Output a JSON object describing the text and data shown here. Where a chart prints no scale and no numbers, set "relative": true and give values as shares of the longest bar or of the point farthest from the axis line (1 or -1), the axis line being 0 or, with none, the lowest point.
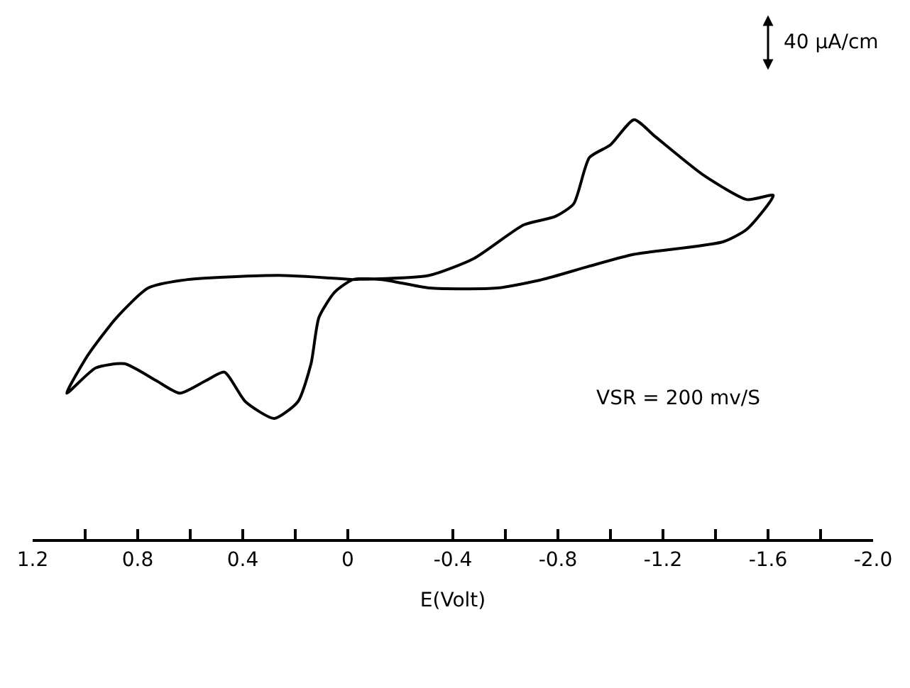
{
  "chart_data": {
    "type": "line",
    "relative": true,
    "xlabel": "E(Volt)",
    "xlim": [
      1.2,
      -2.0
    ],
    "xticks": [
      1.2,
      {
        "value": 1.0,
        "label": null
      },
      0.8,
      {
        "value": 0.6,
        "label": null
      },
      0.4,
      {
        "value": 0.2,
        "label": null
      },
      0,
      -0.4,
      {
        "value": -0.6,
        "label": null
      },
      -0.8,
      {
        "value": -1.0,
        "label": null
      },
      -1.2,
      {
        "value": -1.4,
        "label": null
      },
      -1.6,
      {
        "value": -1.8,
        "label": null
      },
      {
        "value": -2.0,
        "label": "-2.0"
      }
    ],
    "annotations": [
      "40 μA/cm",
      "VSR = 200 mv/S"
    ],
    "marker": "none",
    "line_style": "solid",
    "series": [
      {
        "color": "#000000",
        "x": [
          -0.01,
          -0.31,
          -0.48,
          -0.67,
          -0.79,
          -0.86,
          -0.92,
          -1.0,
          -1.09,
          -1.17,
          -1.35,
          -1.52,
          -1.62,
          -1.52,
          -1.43,
          -1.09,
          -0.91,
          -0.74,
          -0.57,
          -0.31,
          -0.13,
          -0.02,
          0.05,
          0.11,
          0.14,
          0.19,
          0.28,
          0.39,
          0.47,
          0.54,
          0.64,
          0.73,
          0.85,
          0.96,
          1.07,
          0.99,
          0.88,
          0.76,
          0.61,
          0.26,
          -0.02
        ],
        "values": [
          0.62,
          0.63,
          0.67,
          0.75,
          0.77,
          0.8,
          0.91,
          0.94,
          1.0,
          0.96,
          0.87,
          0.81,
          0.82,
          0.74,
          0.71,
          0.68,
          0.65,
          0.62,
          0.6,
          0.6,
          0.62,
          0.62,
          0.59,
          0.53,
          0.42,
          0.33,
          0.29,
          0.33,
          0.4,
          0.38,
          0.35,
          0.38,
          0.42,
          0.41,
          0.35,
          0.44,
          0.53,
          0.6,
          0.62,
          0.63,
          0.62
        ]
      }
    ]
  }
}
